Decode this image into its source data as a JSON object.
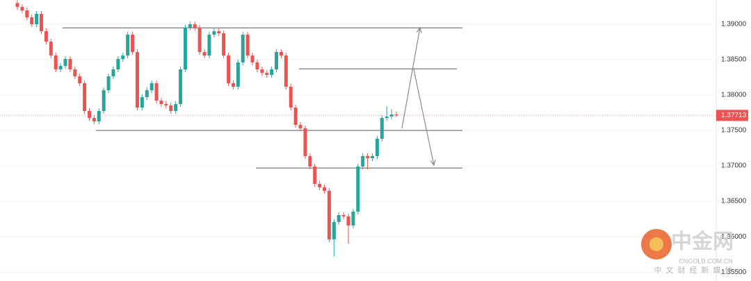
{
  "chart_data": {
    "type": "candlestick",
    "up_color": "#26a69a",
    "down_color": "#ef5350",
    "ylim": [
      1.35374,
      1.39343
    ],
    "yticks": [
      {
        "value": 1.39,
        "label": "1.39000"
      },
      {
        "value": 1.385,
        "label": "1.38500"
      },
      {
        "value": 1.38,
        "label": "1.38000"
      },
      {
        "value": 1.375,
        "label": "1.37500"
      },
      {
        "value": 1.37,
        "label": "1.37000"
      },
      {
        "value": 1.365,
        "label": "1.36500"
      },
      {
        "value": 1.36,
        "label": "1.36000"
      },
      {
        "value": 1.355,
        "label": "1.35500"
      }
    ],
    "grid": true,
    "last_price": {
      "value": 1.37713,
      "label": "1.37713"
    },
    "levels": [
      1.3895,
      1.3837,
      1.375,
      1.3697
    ],
    "ohlc": [
      [
        1.393,
        1.3934,
        1.39205,
        1.39245
      ],
      [
        1.39245,
        1.39285,
        1.39156,
        1.39196
      ],
      [
        1.39196,
        1.39236,
        1.39058,
        1.39098
      ],
      [
        1.39098,
        1.39138,
        1.3896,
        1.39
      ],
      [
        1.39,
        1.39187,
        1.3896,
        1.39147
      ],
      [
        1.39147,
        1.39187,
        1.38862,
        1.38902
      ],
      [
        1.38902,
        1.38942,
        1.38715,
        1.38755
      ],
      [
        1.38755,
        1.38795,
        1.38519,
        1.38559
      ],
      [
        1.38559,
        1.38599,
        1.38323,
        1.38363
      ],
      [
        1.38363,
        1.38452,
        1.38323,
        1.38412
      ],
      [
        1.38412,
        1.3855,
        1.38372,
        1.3851
      ],
      [
        1.3851,
        1.3855,
        1.38323,
        1.38363
      ],
      [
        1.38363,
        1.38403,
        1.38225,
        1.38265
      ],
      [
        1.38265,
        1.38305,
        1.38127,
        1.38167
      ],
      [
        1.38167,
        1.38207,
        1.37735,
        1.37775
      ],
      [
        1.37775,
        1.37815,
        1.37637,
        1.37677
      ],
      [
        1.37677,
        1.37717,
        1.37588,
        1.37628
      ],
      [
        1.37628,
        1.37815,
        1.37588,
        1.37775
      ],
      [
        1.37775,
        1.38109,
        1.37735,
        1.38069
      ],
      [
        1.38069,
        1.38305,
        1.38029,
        1.38265
      ],
      [
        1.38265,
        1.38403,
        1.38225,
        1.38363
      ],
      [
        1.38363,
        1.3855,
        1.38323,
        1.3851
      ],
      [
        1.3851,
        1.38599,
        1.3847,
        1.38559
      ],
      [
        1.38559,
        1.38893,
        1.38519,
        1.38853
      ],
      [
        1.38853,
        1.38893,
        1.38568,
        1.38608
      ],
      [
        1.38608,
        1.38648,
        1.37784,
        1.37824
      ],
      [
        1.37824,
        1.38011,
        1.37784,
        1.37971
      ],
      [
        1.37971,
        1.38109,
        1.37931,
        1.38069
      ],
      [
        1.38069,
        1.38207,
        1.38029,
        1.38167
      ],
      [
        1.38167,
        1.38207,
        1.37882,
        1.37922
      ],
      [
        1.37922,
        1.37962,
        1.37833,
        1.37873
      ],
      [
        1.37873,
        1.37913,
        1.37813,
        1.37853
      ],
      [
        1.37853,
        1.37893,
        1.37735,
        1.37775
      ],
      [
        1.37775,
        1.37913,
        1.37735,
        1.37873
      ],
      [
        1.37873,
        1.38403,
        1.37833,
        1.38363
      ],
      [
        1.38363,
        1.38991,
        1.38323,
        1.38951
      ],
      [
        1.38951,
        1.3904,
        1.38911,
        1.39
      ],
      [
        1.39,
        1.3904,
        1.38911,
        1.38951
      ],
      [
        1.38951,
        1.38991,
        1.38568,
        1.38608
      ],
      [
        1.38608,
        1.38648,
        1.38519,
        1.38559
      ],
      [
        1.38559,
        1.38893,
        1.38519,
        1.38853
      ],
      [
        1.38853,
        1.38942,
        1.38813,
        1.38902
      ],
      [
        1.38902,
        1.38942,
        1.38833,
        1.38873
      ],
      [
        1.38873,
        1.38913,
        1.38519,
        1.38559
      ],
      [
        1.38559,
        1.38599,
        1.38127,
        1.38167
      ],
      [
        1.38167,
        1.38207,
        1.38078,
        1.38118
      ],
      [
        1.38118,
        1.38501,
        1.38078,
        1.38461
      ],
      [
        1.38461,
        1.38893,
        1.38421,
        1.38853
      ],
      [
        1.38853,
        1.38893,
        1.38519,
        1.38559
      ],
      [
        1.38559,
        1.38599,
        1.38421,
        1.38461
      ],
      [
        1.38461,
        1.38501,
        1.38323,
        1.38363
      ],
      [
        1.38363,
        1.38403,
        1.38274,
        1.38314
      ],
      [
        1.38314,
        1.38354,
        1.38245,
        1.38285
      ],
      [
        1.38285,
        1.38403,
        1.38245,
        1.38363
      ],
      [
        1.38363,
        1.38648,
        1.38323,
        1.38608
      ],
      [
        1.38608,
        1.38648,
        1.38519,
        1.38559
      ],
      [
        1.38559,
        1.38599,
        1.38078,
        1.38118
      ],
      [
        1.38118,
        1.38158,
        1.37784,
        1.37824
      ],
      [
        1.37824,
        1.37864,
        1.37539,
        1.37579
      ],
      [
        1.37579,
        1.37619,
        1.3749,
        1.3753
      ],
      [
        1.3753,
        1.3757,
        1.37098,
        1.37138
      ],
      [
        1.37138,
        1.37178,
        1.36951,
        1.36991
      ],
      [
        1.36991,
        1.37031,
        1.36706,
        1.36746
      ],
      [
        1.36746,
        1.36786,
        1.36657,
        1.36697
      ],
      [
        1.36697,
        1.36737,
        1.36608,
        1.36648
      ],
      [
        1.36648,
        1.36688,
        1.35922,
        1.35962
      ],
      [
        1.35962,
        1.36247,
        1.3572,
        1.36207
      ],
      [
        1.36207,
        1.36345,
        1.36167,
        1.36305
      ],
      [
        1.36305,
        1.36345,
        1.36245,
        1.36285
      ],
      [
        1.36285,
        1.36325,
        1.359,
        1.36158
      ],
      [
        1.36158,
        1.36394,
        1.36118,
        1.36354
      ],
      [
        1.36354,
        1.37031,
        1.36314,
        1.36991
      ],
      [
        1.36991,
        1.37178,
        1.36951,
        1.37138
      ],
      [
        1.37138,
        1.37178,
        1.3695,
        1.37109
      ],
      [
        1.37109,
        1.37178,
        1.37069,
        1.37138
      ],
      [
        1.37138,
        1.37423,
        1.37098,
        1.37383
      ],
      [
        1.37383,
        1.37717,
        1.37343,
        1.37677
      ],
      [
        1.37677,
        1.3784,
        1.37637,
        1.37697
      ],
      [
        1.37697,
        1.378,
        1.37657,
        1.37726
      ],
      [
        1.37726,
        1.37766,
        1.3769,
        1.37713
      ]
    ]
  },
  "watermark": {
    "title": "中金网",
    "site": "CNGOLD.COM.CN",
    "tagline": "中文财经新媒体"
  }
}
